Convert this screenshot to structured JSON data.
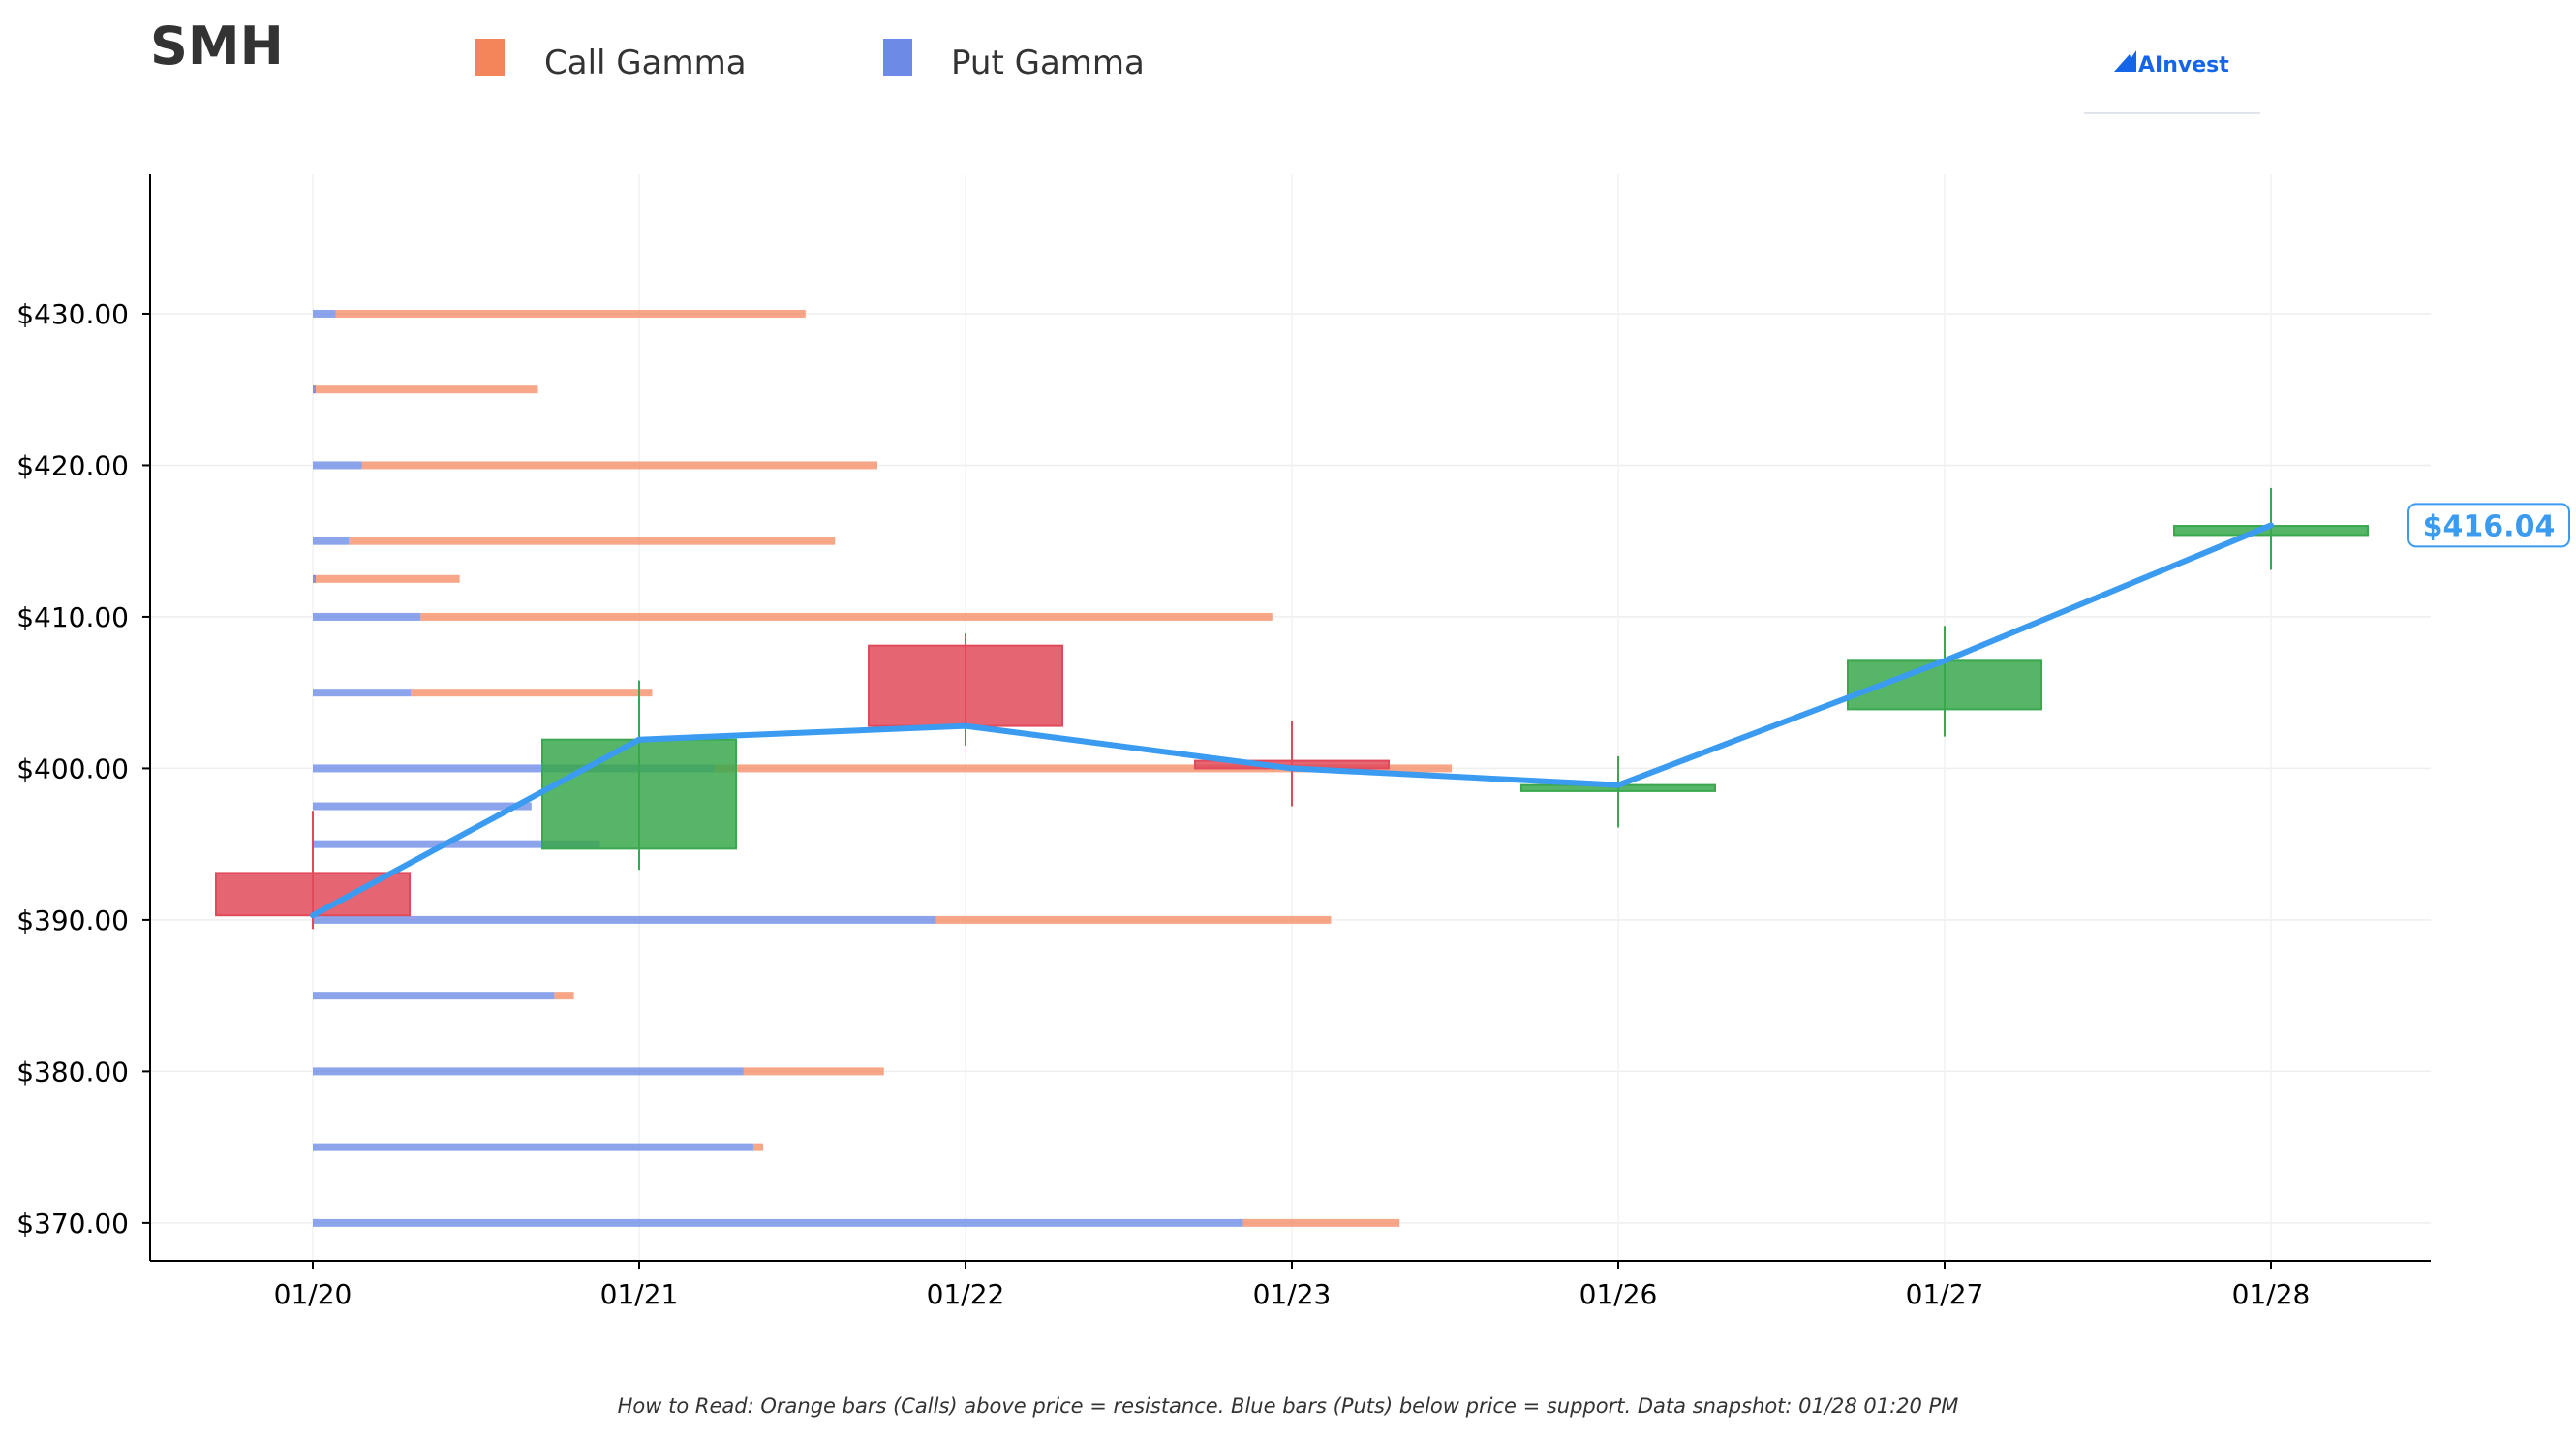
{
  "header": {
    "ticker": "SMH",
    "brand": "AInvest"
  },
  "footnote": "How to Read: Orange bars (Calls) above price = resistance. Blue bars (Puts) below price = support. Data snapshot: 01/28 01:20 PM",
  "colors": {
    "call": "#f4845a",
    "put": "#6b8be6",
    "up": "#3aa84e",
    "down": "#e14a5b",
    "price_line": "#3a9bf0",
    "brand": "#1565e8"
  },
  "chart_data": {
    "type": "candlestick-with-gamma-bars",
    "title": "SMH",
    "legend": [
      {
        "name": "Call Gamma",
        "color": "#f4845a"
      },
      {
        "name": "Put Gamma",
        "color": "#6b8be6"
      }
    ],
    "x_categories": [
      "01/20",
      "01/21",
      "01/22",
      "01/23",
      "01/26",
      "01/27",
      "01/28"
    ],
    "ylim": [
      367.5,
      439.2
    ],
    "y_ticks": [
      370,
      380,
      390,
      400,
      410,
      420,
      430
    ],
    "y_tick_labels": [
      "$370.00",
      "$380.00",
      "$390.00",
      "$400.00",
      "$410.00",
      "$420.00",
      "$430.00"
    ],
    "candles": [
      {
        "date": "01/20",
        "open": 393.1,
        "high": 397.2,
        "low": 389.4,
        "close": 390.3
      },
      {
        "date": "01/21",
        "open": 394.7,
        "high": 405.8,
        "low": 393.3,
        "close": 401.9
      },
      {
        "date": "01/22",
        "open": 408.1,
        "high": 408.9,
        "low": 401.5,
        "close": 402.8
      },
      {
        "date": "01/23",
        "open": 400.5,
        "high": 403.1,
        "low": 397.5,
        "close": 400.0
      },
      {
        "date": "01/26",
        "open": 398.5,
        "high": 400.8,
        "low": 396.1,
        "close": 398.9
      },
      {
        "date": "01/27",
        "open": 403.9,
        "high": 409.4,
        "low": 402.1,
        "close": 407.1
      },
      {
        "date": "01/28",
        "open": 415.4,
        "high": 418.5,
        "low": 413.1,
        "close": 416.0
      }
    ],
    "price_line": [
      390.3,
      401.9,
      402.8,
      400.0,
      398.9,
      407.1,
      416.04
    ],
    "last_price_label": "$416.04",
    "gamma_bars": [
      {
        "strike": 430.0,
        "put": 0.07,
        "total": 1.51
      },
      {
        "strike": 425.0,
        "put": 0.0,
        "total": 0.69
      },
      {
        "strike": 420.0,
        "put": 0.15,
        "total": 1.73
      },
      {
        "strike": 415.0,
        "put": 0.11,
        "total": 1.6
      },
      {
        "strike": 412.5,
        "put": 0.0,
        "total": 0.45
      },
      {
        "strike": 410.0,
        "put": 0.33,
        "total": 2.94
      },
      {
        "strike": 405.0,
        "put": 0.3,
        "total": 1.04
      },
      {
        "strike": 400.0,
        "put": 1.23,
        "total": 3.49
      },
      {
        "strike": 397.5,
        "put": 0.67,
        "total": 0.67
      },
      {
        "strike": 395.0,
        "put": 0.88,
        "total": 0.88
      },
      {
        "strike": 390.0,
        "put": 1.91,
        "total": 3.12
      },
      {
        "strike": 385.0,
        "put": 0.74,
        "total": 0.8
      },
      {
        "strike": 380.0,
        "put": 1.32,
        "total": 1.75
      },
      {
        "strike": 375.0,
        "put": 1.35,
        "total": 1.38
      },
      {
        "strike": 370.0,
        "put": 2.85,
        "total": 3.33
      }
    ],
    "grid": true,
    "legend_placement": "top"
  }
}
